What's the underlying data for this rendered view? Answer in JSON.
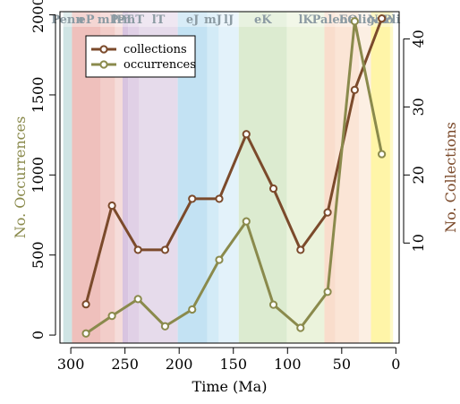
{
  "chart_data": {
    "type": "line",
    "title": "",
    "xlabel": "Time (Ma)",
    "ylabel_left": "No. Occurrences",
    "ylabel_right": "No. Collections",
    "xlim": [
      310,
      -3
    ],
    "ylim_left": [
      -50,
      2020
    ],
    "ylim_right": [
      -4.7,
      44
    ],
    "x_ticks": [
      300,
      250,
      200,
      150,
      100,
      50,
      0
    ],
    "y_left_ticks": [
      0,
      500,
      1000,
      1500,
      2000
    ],
    "y_right_ticks": [
      10,
      20,
      30,
      40
    ],
    "grid": false,
    "legend_position": "top-left",
    "periods": [
      {
        "label": "Penn",
        "start": 307,
        "end": 298.9,
        "color": "#cfe4e4"
      },
      {
        "label": "eP",
        "start": 298.9,
        "end": 272.3,
        "color": "#efc0bc"
      },
      {
        "label": "mP",
        "start": 272.3,
        "end": 259.1,
        "color": "#f2cdc9"
      },
      {
        "label": "lP",
        "start": 259.1,
        "end": 252.2,
        "color": "#f5dcda"
      },
      {
        "label": "eT",
        "start": 252.2,
        "end": 247.2,
        "color": "#d8c4e0"
      },
      {
        "label": "mT",
        "start": 247.2,
        "end": 237,
        "color": "#e0d0e6"
      },
      {
        "label": "lT",
        "start": 237,
        "end": 201.3,
        "color": "#e6dbeb"
      },
      {
        "label": "eJ",
        "start": 201.3,
        "end": 174.1,
        "color": "#c3e2f3"
      },
      {
        "label": "mJ",
        "start": 174.1,
        "end": 163.5,
        "color": "#d3ebf7"
      },
      {
        "label": "lJ",
        "start": 163.5,
        "end": 145,
        "color": "#e3f2fa"
      },
      {
        "label": "eK",
        "start": 145,
        "end": 100.5,
        "color": "#dcebd0"
      },
      {
        "label": "lK",
        "start": 100.5,
        "end": 66,
        "color": "#ebf3dc"
      },
      {
        "label": "Paleo",
        "start": 66,
        "end": 56,
        "color": "#f9ddcc"
      },
      {
        "label": "Eo",
        "start": 56,
        "end": 33.9,
        "color": "#fbe5d6"
      },
      {
        "label": "Oligo",
        "start": 33.9,
        "end": 23,
        "color": "#fcefe3"
      },
      {
        "label": "Neo",
        "start": 23,
        "end": 5.3,
        "color": "#fff5a8"
      },
      {
        "label": "Pli",
        "start": 5.3,
        "end": 2.6,
        "color": "#fffac8"
      }
    ],
    "series": [
      {
        "name": "collections",
        "axis": "right",
        "color": "#7b4a2b",
        "x": [
          286,
          262,
          238,
          213,
          188,
          163,
          138,
          113,
          88,
          63,
          38,
          13
        ],
        "values": [
          1,
          15.5,
          9,
          9,
          16.5,
          16.5,
          26,
          18,
          9,
          14.5,
          32.5,
          43
        ]
      },
      {
        "name": "occurrences",
        "axis": "left",
        "color": "#8a8a4c",
        "x": [
          286,
          262,
          238,
          213,
          188,
          163,
          138,
          113,
          88,
          63,
          38,
          13
        ],
        "values": [
          10,
          120,
          225,
          55,
          160,
          470,
          710,
          190,
          45,
          270,
          1960,
          1130
        ]
      }
    ]
  }
}
